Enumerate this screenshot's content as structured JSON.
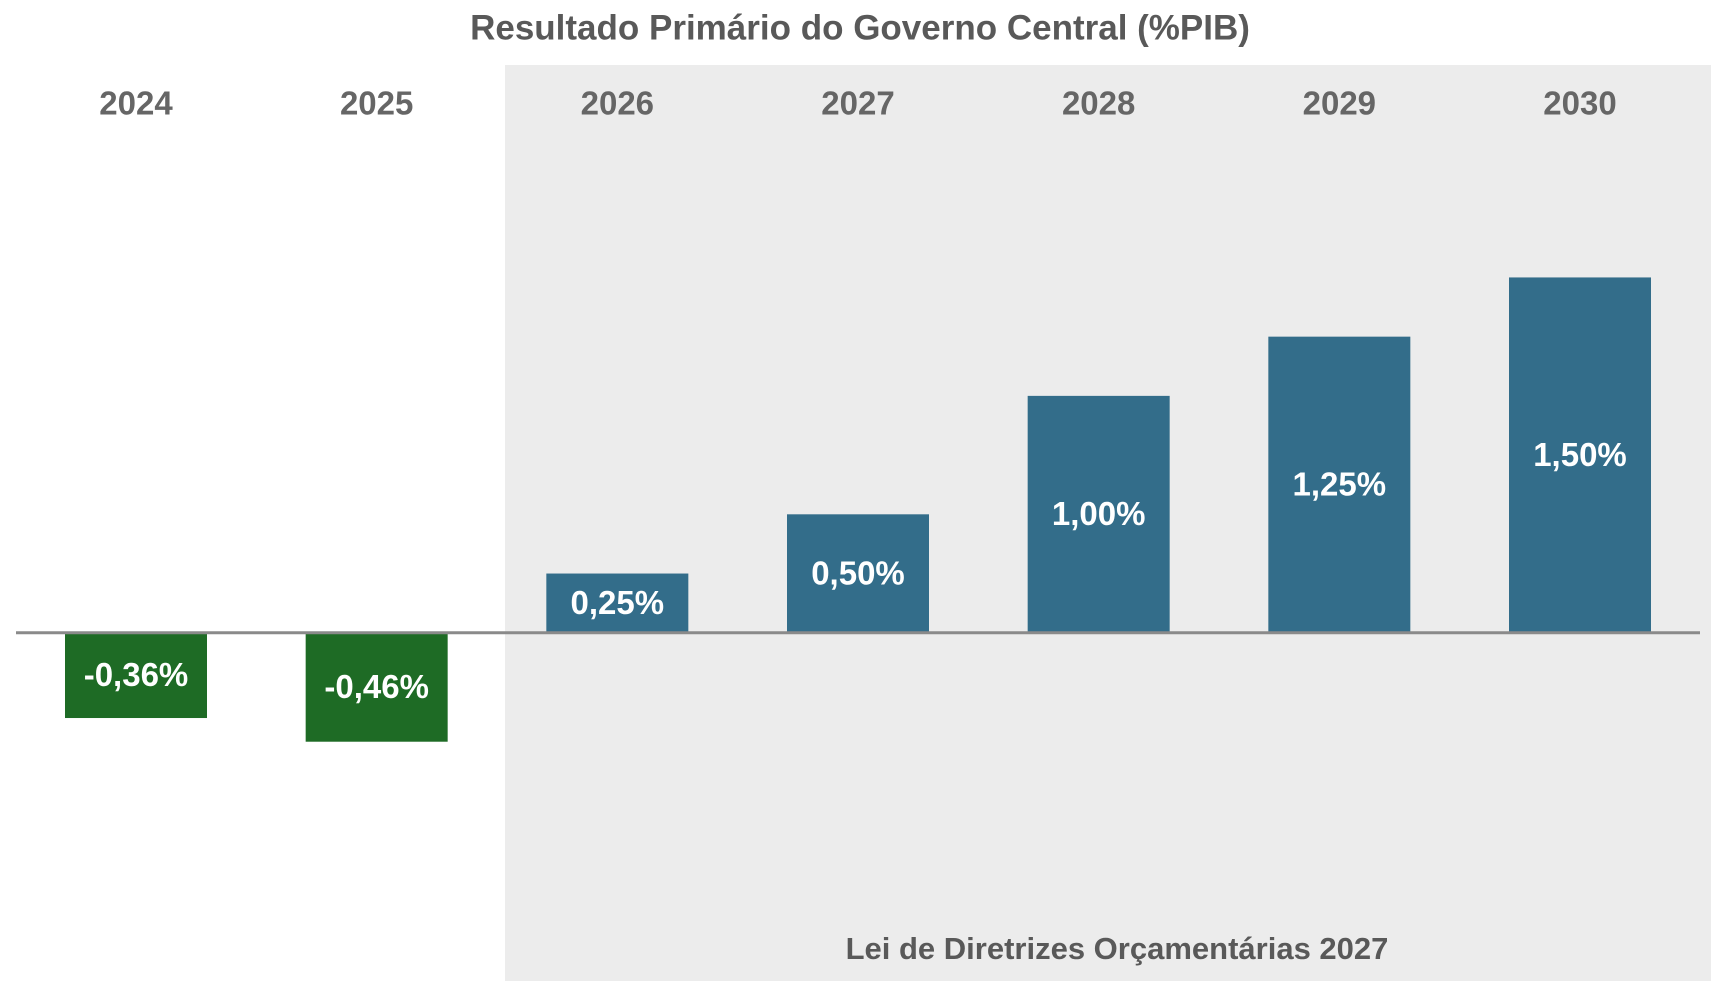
{
  "chart_data": {
    "type": "bar",
    "title": "Resultado Primário do Governo Central (%PIB)",
    "categories": [
      "2024",
      "2025",
      "2026",
      "2027",
      "2028",
      "2029",
      "2030"
    ],
    "values": [
      -0.36,
      -0.46,
      0.25,
      0.5,
      1.0,
      1.25,
      1.5
    ],
    "value_labels": [
      "-0,36%",
      "-0,46%",
      "0,25%",
      "0,50%",
      "1,00%",
      "1,25%",
      "1,50%"
    ],
    "colors": [
      "#1e6b25",
      "#1e6b25",
      "#336d8a",
      "#336d8a",
      "#336d8a",
      "#336d8a",
      "#336d8a"
    ],
    "annotation": "Lei de Diretrizes Orçamentárias 2027",
    "ylim": [
      -1.2,
      2.0
    ],
    "grid": false
  }
}
